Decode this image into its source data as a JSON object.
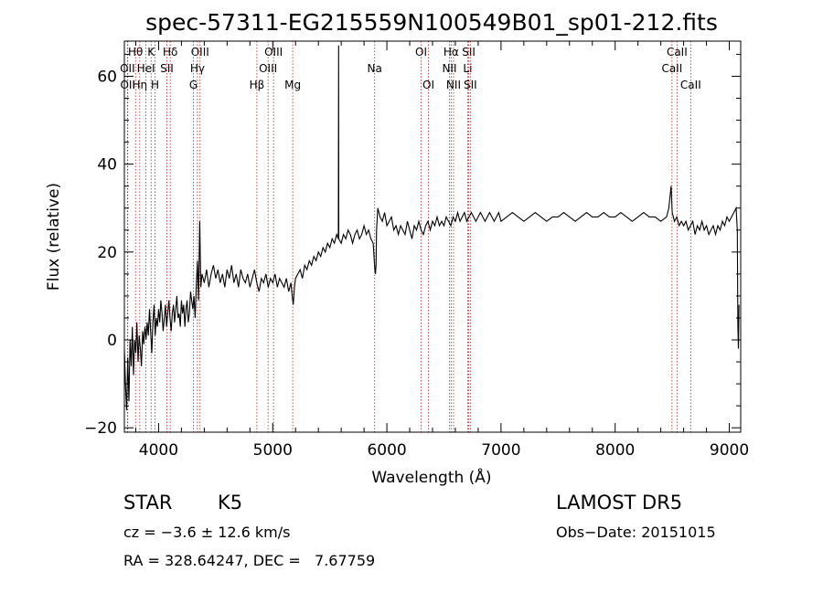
{
  "chart_data": {
    "type": "line",
    "title": "spec-57311-EG215559N100549B01_sp01-212.fits",
    "xlabel": "Wavelength (Å)",
    "ylabel": "Flux (relative)",
    "xlim": [
      3700,
      9100
    ],
    "ylim": [
      -21,
      68
    ],
    "xticks": [
      4000,
      5000,
      6000,
      7000,
      8000,
      9000
    ],
    "yticks": [
      -20,
      0,
      20,
      40,
      60
    ],
    "grid": false,
    "series": [
      {
        "color": "#000000",
        "points": [
          [
            3700,
            -2
          ],
          [
            3710,
            -10
          ],
          [
            3720,
            -16
          ],
          [
            3730,
            -4
          ],
          [
            3740,
            -14
          ],
          [
            3750,
            0
          ],
          [
            3760,
            -6
          ],
          [
            3770,
            3
          ],
          [
            3780,
            -8
          ],
          [
            3790,
            0
          ],
          [
            3800,
            -3
          ],
          [
            3810,
            4
          ],
          [
            3820,
            -5
          ],
          [
            3830,
            1
          ],
          [
            3840,
            -2
          ],
          [
            3850,
            -6
          ],
          [
            3860,
            2
          ],
          [
            3870,
            -1
          ],
          [
            3880,
            3
          ],
          [
            3890,
            0
          ],
          [
            3900,
            4
          ],
          [
            3910,
            1
          ],
          [
            3920,
            7
          ],
          [
            3930,
            2
          ],
          [
            3940,
            -3
          ],
          [
            3950,
            4
          ],
          [
            3960,
            8
          ],
          [
            3970,
            1
          ],
          [
            3980,
            5
          ],
          [
            3990,
            3
          ],
          [
            4000,
            7
          ],
          [
            4010,
            4
          ],
          [
            4020,
            9
          ],
          [
            4030,
            6
          ],
          [
            4040,
            2
          ],
          [
            4050,
            5
          ],
          [
            4060,
            8
          ],
          [
            4070,
            3
          ],
          [
            4080,
            6
          ],
          [
            4090,
            9
          ],
          [
            4100,
            5
          ],
          [
            4110,
            2
          ],
          [
            4120,
            6
          ],
          [
            4130,
            8
          ],
          [
            4140,
            4
          ],
          [
            4150,
            7
          ],
          [
            4160,
            10
          ],
          [
            4170,
            5
          ],
          [
            4180,
            6
          ],
          [
            4190,
            3
          ],
          [
            4200,
            9
          ],
          [
            4210,
            6
          ],
          [
            4220,
            8
          ],
          [
            4230,
            3
          ],
          [
            4240,
            7
          ],
          [
            4250,
            9
          ],
          [
            4260,
            4
          ],
          [
            4270,
            6
          ],
          [
            4280,
            11
          ],
          [
            4290,
            9
          ],
          [
            4300,
            7
          ],
          [
            4310,
            10
          ],
          [
            4320,
            5
          ],
          [
            4330,
            12
          ],
          [
            4340,
            18
          ],
          [
            4350,
            9
          ],
          [
            4360,
            27
          ],
          [
            4370,
            12
          ],
          [
            4380,
            15
          ],
          [
            4400,
            13
          ],
          [
            4420,
            16
          ],
          [
            4440,
            12
          ],
          [
            4460,
            15
          ],
          [
            4480,
            17
          ],
          [
            4500,
            14
          ],
          [
            4520,
            16
          ],
          [
            4540,
            13
          ],
          [
            4560,
            15
          ],
          [
            4580,
            12
          ],
          [
            4600,
            16
          ],
          [
            4620,
            14
          ],
          [
            4640,
            17
          ],
          [
            4660,
            13
          ],
          [
            4680,
            15
          ],
          [
            4700,
            12
          ],
          [
            4720,
            16
          ],
          [
            4740,
            14
          ],
          [
            4760,
            13
          ],
          [
            4780,
            15
          ],
          [
            4800,
            12
          ],
          [
            4820,
            14
          ],
          [
            4840,
            16
          ],
          [
            4860,
            13
          ],
          [
            4880,
            11
          ],
          [
            4900,
            14
          ],
          [
            4920,
            13
          ],
          [
            4940,
            15
          ],
          [
            4960,
            12
          ],
          [
            4980,
            14
          ],
          [
            5000,
            13
          ],
          [
            5020,
            15
          ],
          [
            5040,
            12
          ],
          [
            5060,
            14
          ],
          [
            5080,
            13
          ],
          [
            5100,
            12
          ],
          [
            5120,
            14
          ],
          [
            5140,
            11
          ],
          [
            5160,
            13
          ],
          [
            5170,
            10
          ],
          [
            5180,
            8
          ],
          [
            5190,
            12
          ],
          [
            5200,
            14
          ],
          [
            5220,
            15
          ],
          [
            5240,
            16
          ],
          [
            5260,
            14
          ],
          [
            5280,
            17
          ],
          [
            5300,
            16
          ],
          [
            5320,
            18
          ],
          [
            5340,
            17
          ],
          [
            5360,
            19
          ],
          [
            5380,
            18
          ],
          [
            5400,
            20
          ],
          [
            5420,
            19
          ],
          [
            5440,
            21
          ],
          [
            5460,
            20
          ],
          [
            5480,
            22
          ],
          [
            5500,
            21
          ],
          [
            5520,
            23
          ],
          [
            5540,
            22
          ],
          [
            5560,
            24
          ],
          [
            5575,
            23
          ],
          [
            5577,
            67
          ],
          [
            5579,
            23
          ],
          [
            5600,
            22
          ],
          [
            5620,
            24
          ],
          [
            5640,
            23
          ],
          [
            5660,
            25
          ],
          [
            5680,
            24
          ],
          [
            5700,
            22
          ],
          [
            5720,
            24
          ],
          [
            5740,
            25
          ],
          [
            5760,
            23
          ],
          [
            5780,
            24
          ],
          [
            5800,
            26
          ],
          [
            5820,
            24
          ],
          [
            5840,
            25
          ],
          [
            5860,
            23
          ],
          [
            5880,
            22
          ],
          [
            5890,
            18
          ],
          [
            5895,
            16
          ],
          [
            5900,
            15
          ],
          [
            5905,
            17
          ],
          [
            5910,
            25
          ],
          [
            5920,
            30
          ],
          [
            5940,
            28
          ],
          [
            5960,
            27
          ],
          [
            5980,
            29
          ],
          [
            6000,
            26
          ],
          [
            6020,
            27
          ],
          [
            6040,
            28
          ],
          [
            6060,
            25
          ],
          [
            6080,
            26
          ],
          [
            6100,
            24
          ],
          [
            6120,
            26
          ],
          [
            6140,
            25
          ],
          [
            6160,
            24
          ],
          [
            6180,
            27
          ],
          [
            6200,
            25
          ],
          [
            6220,
            23
          ],
          [
            6240,
            26
          ],
          [
            6260,
            25
          ],
          [
            6280,
            27
          ],
          [
            6300,
            25
          ],
          [
            6320,
            24
          ],
          [
            6340,
            26
          ],
          [
            6360,
            27
          ],
          [
            6380,
            25
          ],
          [
            6400,
            27
          ],
          [
            6420,
            26
          ],
          [
            6440,
            28
          ],
          [
            6460,
            26
          ],
          [
            6480,
            27
          ],
          [
            6500,
            26
          ],
          [
            6520,
            28
          ],
          [
            6540,
            27
          ],
          [
            6560,
            26
          ],
          [
            6580,
            28
          ],
          [
            6600,
            27
          ],
          [
            6620,
            29
          ],
          [
            6640,
            27
          ],
          [
            6660,
            28
          ],
          [
            6680,
            29
          ],
          [
            6700,
            27
          ],
          [
            6720,
            28
          ],
          [
            6740,
            29
          ],
          [
            6760,
            28
          ],
          [
            6780,
            27
          ],
          [
            6800,
            28
          ],
          [
            6820,
            29
          ],
          [
            6840,
            28
          ],
          [
            6860,
            27
          ],
          [
            6880,
            28
          ],
          [
            6900,
            29
          ],
          [
            6920,
            28
          ],
          [
            6940,
            27
          ],
          [
            6960,
            28
          ],
          [
            6980,
            29
          ],
          [
            7000,
            27
          ],
          [
            7050,
            28
          ],
          [
            7100,
            29
          ],
          [
            7150,
            28
          ],
          [
            7200,
            27
          ],
          [
            7250,
            28
          ],
          [
            7300,
            29
          ],
          [
            7350,
            28
          ],
          [
            7400,
            27
          ],
          [
            7450,
            28
          ],
          [
            7500,
            28
          ],
          [
            7550,
            29
          ],
          [
            7600,
            28
          ],
          [
            7650,
            27
          ],
          [
            7700,
            28
          ],
          [
            7750,
            29
          ],
          [
            7800,
            28
          ],
          [
            7850,
            28
          ],
          [
            7900,
            29
          ],
          [
            7950,
            28
          ],
          [
            8000,
            28
          ],
          [
            8050,
            29
          ],
          [
            8100,
            28
          ],
          [
            8150,
            27
          ],
          [
            8200,
            28
          ],
          [
            8250,
            29
          ],
          [
            8300,
            28
          ],
          [
            8350,
            28
          ],
          [
            8400,
            27
          ],
          [
            8450,
            28
          ],
          [
            8470,
            30
          ],
          [
            8490,
            35
          ],
          [
            8500,
            29
          ],
          [
            8520,
            27
          ],
          [
            8540,
            28
          ],
          [
            8560,
            26
          ],
          [
            8580,
            27
          ],
          [
            8600,
            26
          ],
          [
            8620,
            27
          ],
          [
            8640,
            25
          ],
          [
            8660,
            26
          ],
          [
            8680,
            27
          ],
          [
            8700,
            24
          ],
          [
            8720,
            26
          ],
          [
            8740,
            25
          ],
          [
            8760,
            27
          ],
          [
            8780,
            25
          ],
          [
            8800,
            26
          ],
          [
            8820,
            24
          ],
          [
            8840,
            25
          ],
          [
            8860,
            26
          ],
          [
            8880,
            24
          ],
          [
            8900,
            26
          ],
          [
            8920,
            25
          ],
          [
            8940,
            27
          ],
          [
            8960,
            26
          ],
          [
            8980,
            28
          ],
          [
            9000,
            27
          ],
          [
            9020,
            28
          ],
          [
            9040,
            29
          ],
          [
            9060,
            30
          ],
          [
            9070,
            25
          ],
          [
            9075,
            3
          ],
          [
            9080,
            -2
          ],
          [
            9085,
            8
          ]
        ]
      }
    ],
    "lines": [
      {
        "label": "Hθ",
        "x": 3798,
        "row": 0
      },
      {
        "label": "OII",
        "x": 3727,
        "row": 1
      },
      {
        "label": "OII",
        "x": 3730,
        "row": 2
      },
      {
        "label": "K",
        "x": 3934,
        "row": 0
      },
      {
        "label": "HeI",
        "x": 3889,
        "row": 1
      },
      {
        "label": "Hη",
        "x": 3835,
        "row": 2
      },
      {
        "label": "H",
        "x": 3969,
        "row": 2
      },
      {
        "label": "Hδ",
        "x": 4102,
        "row": 0
      },
      {
        "label": "SII",
        "x": 4072,
        "row": 1
      },
      {
        "label": "OIII",
        "x": 4363,
        "row": 0
      },
      {
        "label": "Hγ",
        "x": 4340,
        "row": 1
      },
      {
        "label": "G",
        "x": 4305,
        "row": 2
      },
      {
        "label": "OIII",
        "x": 5007,
        "row": 0
      },
      {
        "label": "OIII",
        "x": 4959,
        "row": 1
      },
      {
        "label": "Hβ",
        "x": 4861,
        "row": 2
      },
      {
        "label": "Mg",
        "x": 5175,
        "row": 2
      },
      {
        "label": "Na",
        "x": 5893,
        "row": 1
      },
      {
        "label": "OI",
        "x": 6300,
        "row": 0
      },
      {
        "label": "OI",
        "x": 6364,
        "row": 2
      },
      {
        "label": "Hα",
        "x": 6563,
        "row": 0
      },
      {
        "label": "NII",
        "x": 6548,
        "row": 1
      },
      {
        "label": "NII",
        "x": 6584,
        "row": 2
      },
      {
        "label": "SII",
        "x": 6717,
        "row": 0
      },
      {
        "label": "Li",
        "x": 6708,
        "row": 1
      },
      {
        "label": "SII",
        "x": 6731,
        "row": 2
      },
      {
        "label": "CaII",
        "x": 8542,
        "row": 0
      },
      {
        "label": "CaII",
        "x": 8498,
        "row": 1
      },
      {
        "label": "CaII",
        "x": 8662,
        "row": 2
      }
    ]
  },
  "info": {
    "object_type": "STAR",
    "object_class": "K5",
    "survey": "LAMOST DR5",
    "cz": "cz = −3.6 ± 12.6 km/s",
    "obs_date": "Obs−Date: 20151015",
    "radec": "RA = 328.64247, DEC =   7.67759"
  }
}
